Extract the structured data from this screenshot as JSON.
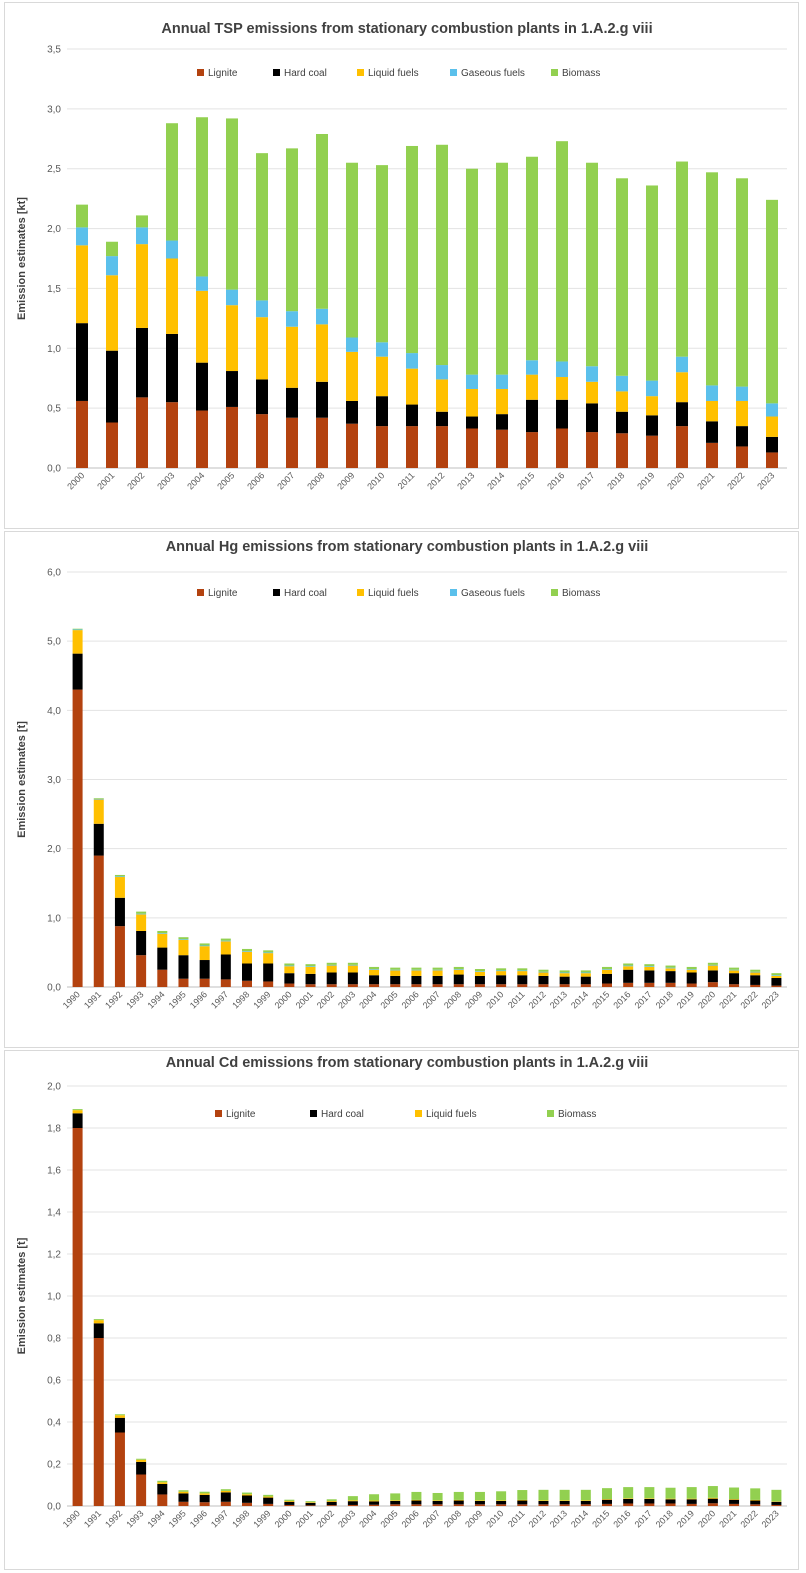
{
  "chart_data": [
    {
      "type": "bar",
      "stacked": true,
      "title": "Annual TSP emissions from stationary combustion plants in 1.A.2.g viii",
      "ylabel": "Emission estimates [kt]",
      "xlabel": "",
      "ylim": [
        0,
        3.5
      ],
      "yticks": [
        "0,0",
        "0,5",
        "1,0",
        "1,5",
        "2,0",
        "2,5",
        "3,0",
        "3,5"
      ],
      "grid": true,
      "legend_position": "top",
      "categories": [
        "2000",
        "2001",
        "2002",
        "2003",
        "2004",
        "2005",
        "2006",
        "2007",
        "2008",
        "2009",
        "2010",
        "2011",
        "2012",
        "2013",
        "2014",
        "2015",
        "2016",
        "2017",
        "2018",
        "2019",
        "2020",
        "2021",
        "2022",
        "2023"
      ],
      "series": [
        {
          "name": "Lignite",
          "color": "#b3420f",
          "values": [
            0.56,
            0.38,
            0.59,
            0.55,
            0.48,
            0.51,
            0.45,
            0.42,
            0.42,
            0.37,
            0.35,
            0.35,
            0.35,
            0.33,
            0.32,
            0.3,
            0.33,
            0.3,
            0.29,
            0.27,
            0.35,
            0.21,
            0.18,
            0.13
          ]
        },
        {
          "name": "Hard coal",
          "color": "#000000",
          "values": [
            0.65,
            0.6,
            0.58,
            0.57,
            0.4,
            0.3,
            0.29,
            0.25,
            0.3,
            0.19,
            0.25,
            0.18,
            0.12,
            0.1,
            0.13,
            0.27,
            0.24,
            0.24,
            0.18,
            0.17,
            0.2,
            0.18,
            0.17,
            0.13
          ]
        },
        {
          "name": "Liquid fuels",
          "color": "#ffc000",
          "values": [
            0.65,
            0.63,
            0.7,
            0.63,
            0.6,
            0.55,
            0.52,
            0.51,
            0.48,
            0.41,
            0.33,
            0.3,
            0.27,
            0.23,
            0.21,
            0.21,
            0.19,
            0.18,
            0.17,
            0.16,
            0.25,
            0.17,
            0.21,
            0.17
          ]
        },
        {
          "name": "Gaseous fuels",
          "color": "#5bc0eb",
          "values": [
            0.15,
            0.16,
            0.14,
            0.15,
            0.12,
            0.13,
            0.14,
            0.13,
            0.13,
            0.12,
            0.12,
            0.13,
            0.12,
            0.12,
            0.12,
            0.12,
            0.13,
            0.13,
            0.13,
            0.13,
            0.13,
            0.13,
            0.12,
            0.11
          ]
        },
        {
          "name": "Biomass",
          "color": "#92d050",
          "values": [
            0.19,
            0.12,
            0.1,
            0.98,
            1.33,
            1.43,
            1.23,
            1.36,
            1.46,
            1.46,
            1.48,
            1.73,
            1.84,
            1.72,
            1.77,
            1.7,
            1.84,
            1.7,
            1.65,
            1.63,
            1.63,
            1.78,
            1.74,
            1.7
          ]
        }
      ]
    },
    {
      "type": "bar",
      "stacked": true,
      "title": "Annual Hg emissions from stationary combustion plants in 1.A.2.g viii",
      "ylabel": "Emission estimates [t]",
      "xlabel": "",
      "ylim": [
        0,
        6
      ],
      "yticks": [
        "0,0",
        "1,0",
        "2,0",
        "3,0",
        "4,0",
        "5,0",
        "6,0"
      ],
      "grid": true,
      "legend_position": "top",
      "categories": [
        "1990",
        "1991",
        "1992",
        "1993",
        "1994",
        "1995",
        "1996",
        "1997",
        "1998",
        "1999",
        "2000",
        "2001",
        "2002",
        "2003",
        "2004",
        "2005",
        "2006",
        "2007",
        "2008",
        "2009",
        "2010",
        "2011",
        "2012",
        "2013",
        "2014",
        "2015",
        "2016",
        "2017",
        "2018",
        "2019",
        "2020",
        "2021",
        "2022",
        "2023"
      ],
      "series": [
        {
          "name": "Lignite",
          "color": "#b3420f",
          "values": [
            4.3,
            1.9,
            0.88,
            0.46,
            0.25,
            0.12,
            0.12,
            0.11,
            0.09,
            0.08,
            0.05,
            0.04,
            0.04,
            0.04,
            0.04,
            0.04,
            0.04,
            0.04,
            0.04,
            0.04,
            0.04,
            0.04,
            0.04,
            0.04,
            0.04,
            0.05,
            0.06,
            0.06,
            0.06,
            0.05,
            0.07,
            0.04,
            0.03,
            0.02
          ]
        },
        {
          "name": "Hard coal",
          "color": "#000000",
          "values": [
            0.52,
            0.46,
            0.41,
            0.35,
            0.32,
            0.34,
            0.27,
            0.36,
            0.25,
            0.26,
            0.15,
            0.15,
            0.17,
            0.17,
            0.13,
            0.12,
            0.12,
            0.12,
            0.14,
            0.12,
            0.13,
            0.13,
            0.12,
            0.11,
            0.11,
            0.14,
            0.19,
            0.18,
            0.17,
            0.16,
            0.17,
            0.16,
            0.14,
            0.11
          ]
        },
        {
          "name": "Liquid fuels",
          "color": "#ffc000",
          "values": [
            0.34,
            0.35,
            0.3,
            0.24,
            0.2,
            0.22,
            0.2,
            0.19,
            0.17,
            0.15,
            0.1,
            0.1,
            0.1,
            0.1,
            0.08,
            0.08,
            0.08,
            0.08,
            0.07,
            0.06,
            0.06,
            0.06,
            0.05,
            0.05,
            0.05,
            0.06,
            0.05,
            0.05,
            0.04,
            0.04,
            0.07,
            0.04,
            0.04,
            0.03
          ]
        },
        {
          "name": "Gaseous fuels",
          "color": "#5bc0eb",
          "values": [
            0.01,
            0.01,
            0.01,
            0.01,
            0.01,
            0.01,
            0.01,
            0.01,
            0.01,
            0.01,
            0.01,
            0.01,
            0.01,
            0.01,
            0.01,
            0.01,
            0.01,
            0.01,
            0.01,
            0.01,
            0.01,
            0.01,
            0.01,
            0.01,
            0.01,
            0.01,
            0.01,
            0.01,
            0.01,
            0.01,
            0.01,
            0.01,
            0.01,
            0.01
          ]
        },
        {
          "name": "Biomass",
          "color": "#92d050",
          "values": [
            0.01,
            0.01,
            0.02,
            0.03,
            0.03,
            0.03,
            0.03,
            0.03,
            0.03,
            0.03,
            0.03,
            0.03,
            0.03,
            0.03,
            0.03,
            0.03,
            0.03,
            0.03,
            0.03,
            0.03,
            0.03,
            0.03,
            0.03,
            0.03,
            0.03,
            0.03,
            0.03,
            0.03,
            0.03,
            0.03,
            0.03,
            0.03,
            0.03,
            0.03
          ]
        }
      ]
    },
    {
      "type": "bar",
      "stacked": true,
      "title": "Annual Cd emissions from stationary combustion plants in 1.A.2.g viii",
      "ylabel": "Emission estimates [t]",
      "xlabel": "",
      "ylim": [
        0,
        2.0
      ],
      "yticks": [
        "0,0",
        "0,2",
        "0,4",
        "0,6",
        "0,8",
        "1,0",
        "1,2",
        "1,4",
        "1,6",
        "1,8",
        "2,0"
      ],
      "grid": true,
      "legend_position": "top",
      "categories": [
        "1990",
        "1991",
        "1992",
        "1993",
        "1994",
        "1995",
        "1996",
        "1997",
        "1998",
        "1999",
        "2000",
        "2001",
        "2002",
        "2003",
        "2004",
        "2005",
        "2006",
        "2007",
        "2008",
        "2009",
        "2010",
        "2011",
        "2012",
        "2013",
        "2014",
        "2015",
        "2016",
        "2017",
        "2018",
        "2019",
        "2020",
        "2021",
        "2022",
        "2023"
      ],
      "series": [
        {
          "name": "Lignite",
          "color": "#b3420f",
          "values": [
            1.8,
            0.8,
            0.35,
            0.15,
            0.055,
            0.02,
            0.018,
            0.02,
            0.015,
            0.01,
            0.005,
            0.003,
            0.004,
            0.005,
            0.006,
            0.008,
            0.008,
            0.008,
            0.008,
            0.008,
            0.008,
            0.008,
            0.008,
            0.008,
            0.008,
            0.01,
            0.012,
            0.012,
            0.012,
            0.01,
            0.013,
            0.01,
            0.008,
            0.005
          ]
        },
        {
          "name": "Hard coal",
          "color": "#000000",
          "values": [
            0.07,
            0.07,
            0.07,
            0.06,
            0.05,
            0.04,
            0.035,
            0.045,
            0.035,
            0.03,
            0.015,
            0.012,
            0.016,
            0.018,
            0.016,
            0.016,
            0.018,
            0.016,
            0.018,
            0.016,
            0.016,
            0.018,
            0.016,
            0.016,
            0.016,
            0.02,
            0.022,
            0.022,
            0.02,
            0.022,
            0.022,
            0.02,
            0.018,
            0.015
          ]
        },
        {
          "name": "Liquid fuels",
          "color": "#ffc000",
          "values": [
            0.015,
            0.015,
            0.012,
            0.01,
            0.008,
            0.008,
            0.007,
            0.007,
            0.006,
            0.005,
            0.004,
            0.003,
            0.004,
            0.004,
            0.004,
            0.003,
            0.003,
            0.003,
            0.003,
            0.003,
            0.003,
            0.003,
            0.003,
            0.003,
            0.003,
            0.003,
            0.003,
            0.003,
            0.003,
            0.003,
            0.004,
            0.003,
            0.003,
            0.002
          ]
        },
        {
          "name": "Biomass",
          "color": "#92d050",
          "values": [
            0.005,
            0.005,
            0.005,
            0.005,
            0.007,
            0.007,
            0.008,
            0.008,
            0.008,
            0.008,
            0.006,
            0.005,
            0.008,
            0.02,
            0.03,
            0.033,
            0.038,
            0.035,
            0.038,
            0.04,
            0.043,
            0.047,
            0.05,
            0.05,
            0.05,
            0.052,
            0.053,
            0.053,
            0.052,
            0.055,
            0.056,
            0.055,
            0.055,
            0.055
          ]
        }
      ]
    }
  ]
}
